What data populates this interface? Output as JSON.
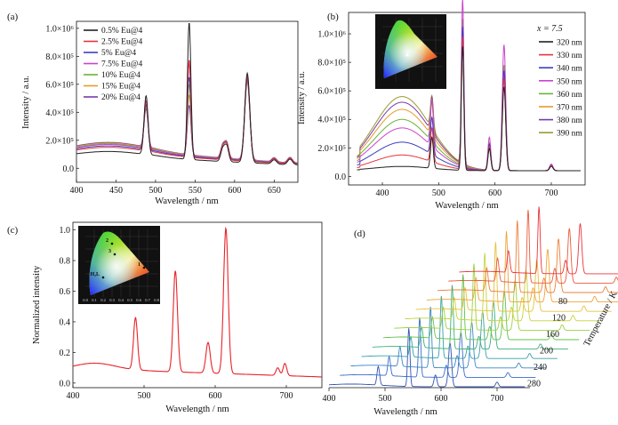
{
  "chart_data": [
    {
      "panel": "(a)",
      "type": "line",
      "xlabel": "Wavelength / nm",
      "ylabel": "Intensity / a.u.",
      "xlim": [
        400,
        680
      ],
      "ylim": [
        -100000,
        1050000
      ],
      "xticks": [
        "400",
        "450",
        "500",
        "550",
        "600",
        "650"
      ],
      "yticks": [
        "0.0",
        "2.0×10⁵",
        "4.0×10⁵",
        "6.0×10⁵",
        "8.0×10⁵",
        "1.0×10⁶"
      ],
      "ytick_values": [
        0,
        200000,
        400000,
        600000,
        800000,
        1000000
      ],
      "legend_position": "top-left",
      "series": [
        {
          "name": "0.5% Eu@4",
          "color": "#222222",
          "scale": 1.0,
          "base": 120000
        },
        {
          "name": "2.5% Eu@4",
          "color": "#e8343c",
          "scale": 0.71,
          "base": 150000
        },
        {
          "name": "5% Eu@4",
          "color": "#3a3fbf",
          "scale": 0.58,
          "base": 160000
        },
        {
          "name": "7.5% Eu@4",
          "color": "#cc44cc",
          "scale": 0.68,
          "base": 170000
        },
        {
          "name": "10% Eu@4",
          "color": "#6ab23a",
          "scale": 0.52,
          "base": 175000
        },
        {
          "name": "15% Eu@4",
          "color": "#e89a2a",
          "scale": 0.44,
          "base": 180000
        },
        {
          "name": "20% Eu@4",
          "color": "#7a3aa8",
          "scale": 0.36,
          "base": 185000
        }
      ]
    },
    {
      "panel": "(b)",
      "type": "line",
      "annotation": "x = 7.5",
      "xlabel": "Wavelength / nm",
      "ylabel": "Intensity / a.u.",
      "xlim": [
        340,
        760
      ],
      "ylim": [
        -60000,
        1150000
      ],
      "xticks": [
        "400",
        "500",
        "600",
        "700"
      ],
      "yticks": [
        "0.0",
        "2.0×10⁵",
        "4.0×10⁵",
        "6.0×10⁵",
        "8.0×10⁵",
        "1.0×10⁶"
      ],
      "ytick_values": [
        0,
        200000,
        400000,
        600000,
        800000,
        1000000
      ],
      "legend_position": "top-right",
      "series": [
        {
          "name": "320 nm",
          "color": "#222222",
          "broad": 30000,
          "peak": 620000
        },
        {
          "name": "330 nm",
          "color": "#e8343c",
          "broad": 110000,
          "peak": 680000
        },
        {
          "name": "340 nm",
          "color": "#3a3fbf",
          "broad": 200000,
          "peak": 740000
        },
        {
          "name": "350 nm",
          "color": "#cc44cc",
          "broad": 300000,
          "peak": 930000
        },
        {
          "name": "360 nm",
          "color": "#6ab23a",
          "broad": 360000,
          "peak": 780000
        },
        {
          "name": "370 nm",
          "color": "#e89a2a",
          "broad": 430000,
          "peak": 720000
        },
        {
          "name": "380 nm",
          "color": "#7a3aa8",
          "broad": 480000,
          "peak": 690000
        },
        {
          "name": "390 nm",
          "color": "#9a9a30",
          "broad": 520000,
          "peak": 660000
        }
      ],
      "inset": "CIE chromaticity diagram"
    },
    {
      "panel": "(c)",
      "type": "line",
      "xlabel": "Wavelength / nm",
      "ylabel": "Normalized intensity",
      "xlim": [
        400,
        750
      ],
      "ylim": [
        -0.03,
        1.05
      ],
      "xticks": [
        "400",
        "500",
        "600",
        "700"
      ],
      "yticks": [
        "0.0",
        "0.2",
        "0.4",
        "0.6",
        "0.8",
        "1.0"
      ],
      "ytick_values": [
        0,
        0.2,
        0.4,
        0.6,
        0.8,
        1.0
      ],
      "series": [
        {
          "name": "",
          "color": "#e8232a"
        }
      ],
      "inset": {
        "xticks": [
          "0.0",
          "0.1",
          "0.2",
          "0.3",
          "0.4",
          "0.5",
          "0.6",
          "0.7",
          "0.8"
        ],
        "points": [
          {
            "label": "1",
            "x": 0.66,
            "y": 0.33
          },
          {
            "label": "2",
            "x": 0.3,
            "y": 0.6
          },
          {
            "label": "3",
            "x": 0.33,
            "y": 0.48
          },
          {
            "label": "H₂L",
            "x": 0.2,
            "y": 0.22
          }
        ]
      }
    },
    {
      "panel": "(d)",
      "type": "line",
      "xlabel": "Wavelength / nm",
      "ylabel": "Temperature / K",
      "xticks": [
        "400",
        "500",
        "600",
        "700"
      ],
      "temperature_labels": [
        "80",
        "120",
        "160",
        "200",
        "240",
        "280"
      ],
      "series_colors": [
        "#e8343c",
        "#ea5a3a",
        "#ec7f38",
        "#eea43a",
        "#e6c23c",
        "#c8d23a",
        "#9ad23e",
        "#62c04a",
        "#3eb07a",
        "#38a0a8",
        "#3a86c6",
        "#3a6cc8",
        "#3050b4"
      ]
    }
  ]
}
